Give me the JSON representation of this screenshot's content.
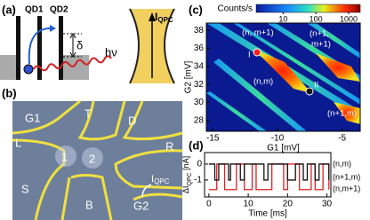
{
  "panel_a": {
    "label": "(a)",
    "qd1": "QD1",
    "qd2": "QD2",
    "delta": "δ",
    "photon": "hν",
    "current": "I",
    "current_sub": "QPC"
  },
  "panel_b": {
    "label": "(b)",
    "gates": [
      "G1",
      "T",
      "D",
      "L",
      "R",
      "S",
      "B",
      "G2"
    ],
    "dots": [
      "1",
      "2"
    ],
    "current": "I",
    "current_sub": "QPC"
  },
  "chart_data": [
    {
      "type": "heatmap",
      "label": "(c)",
      "xlabel": "G1 [mV]",
      "ylabel": "G2 [mV]",
      "xlim": [
        -15.5,
        -3.6
      ],
      "xticks": [
        -15,
        -10,
        -5
      ],
      "ylim": [
        26.8,
        38.8
      ],
      "yticks": [
        28,
        30,
        32,
        34,
        36,
        38
      ],
      "colorbar": {
        "label": "Counts/s",
        "log": true,
        "lim": [
          1.5,
          2250
        ],
        "ticks": [
          10,
          100,
          1000
        ]
      },
      "annotations": [
        "(n, m+1)",
        "(n+1,",
        "m+1)",
        "(n,m)",
        "(n+1,m)",
        "I",
        "II"
      ]
    },
    {
      "type": "line",
      "label": "(d)",
      "xlabel": "Time [ms]",
      "ylabel": "ΔI",
      "ylabel_sub": "QPC",
      "ylabel_unit": " [nA]",
      "xlim": [
        -1.1,
        31
      ],
      "xticks": [
        0,
        10,
        20,
        30
      ],
      "ylim": [
        -2.06,
        0.72
      ],
      "yticks": [
        0,
        -1
      ],
      "series": [
        {
          "color": "#e02020",
          "x": [
            0,
            2,
            4,
            7,
            9,
            11,
            12,
            16,
            19,
            20,
            23,
            26,
            27,
            29,
            30.5
          ],
          "values": [
            -1.6,
            0,
            -1.6,
            0,
            -1.6,
            0,
            -1.6,
            0,
            -1.6,
            0,
            -1.6,
            0,
            -1.6,
            0,
            -1.6
          ]
        },
        {
          "color": "#111111",
          "x": [
            0,
            1.5,
            2.5,
            5,
            5.5,
            8,
            9,
            14,
            15,
            20,
            22,
            24,
            25,
            27,
            28,
            30.5
          ],
          "values": [
            0,
            -1,
            0,
            -1,
            0,
            -1,
            0,
            -1,
            0,
            -1,
            0,
            -1,
            0,
            -1,
            0,
            -1
          ]
        }
      ],
      "annotations": [
        "(n,m)",
        "(n+1,m)",
        "(n,m+1)"
      ]
    }
  ]
}
